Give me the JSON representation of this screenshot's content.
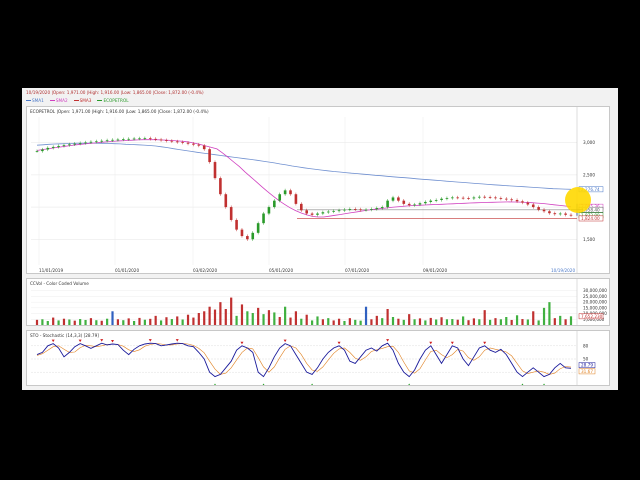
{
  "header": {
    "info": "10/19/2020 |Open: 1,971.00 |High: 1,916.00 |Low: 1,865.00 |Close: 1,872.00 (-0.4%)"
  },
  "legend": [
    {
      "name": "SMA1",
      "color": "#4a78c8"
    },
    {
      "name": "SMA2",
      "color": "#d040c0"
    },
    {
      "name": "SMA3",
      "color": "#c03030"
    },
    {
      "name": "ECOPETROL",
      "color": "#2a9a2a"
    }
  ],
  "panels": {
    "price_title": "ECOPETROL |Open: 1,971.00 |High: 1,916.00 |Low: 1,865.00 |Close: 1,872.00 (-0.4%)",
    "volume_title": "CCVol - Color Coded Volume",
    "stoch_title": "STO - Stochastic (14,3,3) [28.79]"
  },
  "chart_data": [
    {
      "type": "candlestick",
      "name": "ECOPETROL",
      "x_ticks": [
        "11/01/2019",
        "01/01/2020",
        "03/02/2020",
        "05/01/2020",
        "07/01/2020",
        "09/01/2020"
      ],
      "y_ticks": [
        "1,500",
        "2,000",
        "2,500",
        "3,000"
      ],
      "ylim": [
        1100,
        3400
      ],
      "last_date_label": "10/19/2020",
      "price_labels": [
        {
          "text": "2,276.74",
          "value": 2276.74,
          "color": "#4a78c8"
        },
        {
          "text": "2,005.36",
          "value": 2005.36,
          "color": "#d040c0"
        },
        {
          "text": "1,958.40",
          "value": 1958.4,
          "color": "#555555"
        },
        {
          "text": "1,872.00",
          "value": 1872.0,
          "color": "#2a9a2a"
        },
        {
          "text": "1,824.00",
          "value": 1824.0,
          "color": "#c03030"
        }
      ],
      "close": [
        2870,
        2895,
        2920,
        2935,
        2950,
        2962,
        2975,
        2985,
        2995,
        3005,
        3015,
        3022,
        3030,
        3038,
        3045,
        3050,
        3055,
        3060,
        3065,
        3068,
        3070,
        3060,
        3050,
        3040,
        3030,
        3020,
        3010,
        3000,
        2985,
        2970,
        2955,
        2900,
        2700,
        2450,
        2200,
        2000,
        1800,
        1650,
        1550,
        1500,
        1600,
        1750,
        1900,
        2000,
        2100,
        2200,
        2260,
        2200,
        2050,
        1950,
        1900,
        1880,
        1900,
        1920,
        1930,
        1940,
        1950,
        1960,
        1970,
        1965,
        1955,
        1960,
        1970,
        1985,
        2000,
        2100,
        2150,
        2100,
        2050,
        2030,
        2040,
        2060,
        2080,
        2100,
        2110,
        2130,
        2140,
        2150,
        2145,
        2140,
        2135,
        2150,
        2160,
        2155,
        2150,
        2140,
        2130,
        2120,
        2110,
        2090,
        2070,
        2040,
        2000,
        1960,
        1935,
        1905,
        1890,
        1900,
        1880,
        1872
      ],
      "sma_long": [
        2962,
        2968,
        2976,
        2980,
        2984,
        2987,
        2990,
        2993,
        2994,
        2994,
        2993,
        2991,
        2989,
        2985,
        2982,
        2976,
        2972,
        2968,
        2963,
        2957,
        2950,
        2937,
        2924,
        2908,
        2894,
        2879,
        2866,
        2852,
        2839,
        2826,
        2814,
        2801,
        2790,
        2777,
        2765,
        2752,
        2741,
        2728,
        2715,
        2700,
        2686,
        2670,
        2655,
        2639,
        2624,
        2610,
        2598,
        2585,
        2575,
        2564,
        2553,
        2545,
        2536,
        2527,
        2520,
        2511,
        2503,
        2494,
        2487,
        2478,
        2471,
        2463,
        2457,
        2449,
        2440,
        2432,
        2426,
        2418,
        2411,
        2403,
        2396,
        2389,
        2382,
        2375,
        2367,
        2360,
        2353,
        2346,
        2340,
        2334,
        2327,
        2322,
        2317,
        2310,
        2304,
        2298,
        2292,
        2286,
        2283,
        2280,
        2276
      ],
      "sma_mid": [
        2880,
        2895,
        2905,
        2920,
        2932,
        2945,
        2957,
        2968,
        2978,
        2987,
        2995,
        3003,
        3011,
        3018,
        3025,
        3030,
        3035,
        3040,
        3044,
        3047,
        3049,
        3048,
        3044,
        3040,
        3035,
        3029,
        3022,
        3012,
        2995,
        2974,
        2951,
        2927,
        2904,
        2842,
        2773,
        2700,
        2629,
        2547,
        2470,
        2395,
        2317,
        2240,
        2170,
        2104,
        2045,
        1990,
        1945,
        1908,
        1878,
        1856,
        1846,
        1846,
        1858,
        1872,
        1885,
        1900,
        1914,
        1927,
        1941,
        1954,
        1966,
        1976,
        1985,
        1995,
        2003,
        2011,
        2018,
        2024,
        2028,
        2033,
        2037,
        2040,
        2044,
        2048,
        2051,
        2055,
        2059,
        2063,
        2067,
        2070,
        2073,
        2075,
        2078,
        2079,
        2080,
        2079,
        2077,
        2073,
        2068,
        2062,
        2055,
        2046,
        2036,
        2026,
        2017,
        2005
      ],
      "horizontal_lines": [
        1958.4,
        1824.0
      ],
      "crosshair_value": 1958.4
    },
    {
      "type": "bar",
      "name": "CCVol - Color Coded Volume",
      "y_ticks": [
        "30,000,000",
        "25,000,000",
        "20,000,000",
        "15,000,000",
        "10,000,000",
        "5,000,000"
      ],
      "ylim": [
        0,
        35000000
      ],
      "last_value_label": "7,652,230",
      "values": [
        4.5,
        5.0,
        3.5,
        6.5,
        4.0,
        5.5,
        4.8,
        3.8,
        5.2,
        4.4,
        6.0,
        4.2,
        3.7,
        5.5,
        12.0,
        5.0,
        4.2,
        5.8,
        3.5,
        6.2,
        4.6,
        5.4,
        8.0,
        4.0,
        6.8,
        5.2,
        7.5,
        4.8,
        9.0,
        6.5,
        10.5,
        12.0,
        16.0,
        13.5,
        20.0,
        14.0,
        24.0,
        8.0,
        18.0,
        12.0,
        10.5,
        15.0,
        9.5,
        13.0,
        11.0,
        7.0,
        16.0,
        6.5,
        12.0,
        5.5,
        9.0,
        4.0,
        7.5,
        5.0,
        6.0,
        4.0,
        5.5,
        3.5,
        6.0,
        4.5,
        3.8,
        16.0,
        5.0,
        8.0,
        6.0,
        14.0,
        7.0,
        5.5,
        4.5,
        9.5,
        5.0,
        5.8,
        4.0,
        6.2,
        4.8,
        6.8,
        5.0,
        5.2,
        4.6,
        7.5,
        4.2,
        5.8,
        5.0,
        13.0,
        4.5,
        6.0,
        5.0,
        7.0,
        4.4,
        8.5,
        5.2,
        4.8,
        12.0,
        4.0,
        15.0,
        20.0,
        6.0,
        8.0,
        5.0,
        7.6
      ],
      "colors": [
        "r",
        "g",
        "g",
        "r",
        "g",
        "r",
        "g",
        "r",
        "g",
        "g",
        "r",
        "g",
        "r",
        "g",
        "b",
        "r",
        "g",
        "r",
        "g",
        "r",
        "g",
        "r",
        "r",
        "g",
        "r",
        "g",
        "r",
        "g",
        "r",
        "r",
        "r",
        "r",
        "r",
        "r",
        "r",
        "r",
        "r",
        "g",
        "r",
        "g",
        "g",
        "r",
        "g",
        "r",
        "g",
        "r",
        "g",
        "r",
        "r",
        "g",
        "r",
        "g",
        "g",
        "r",
        "g",
        "r",
        "r",
        "g",
        "r",
        "g",
        "g",
        "b",
        "r",
        "r",
        "g",
        "r",
        "g",
        "r",
        "g",
        "r",
        "g",
        "r",
        "g",
        "r",
        "g",
        "r",
        "g",
        "g",
        "r",
        "g",
        "r",
        "r",
        "g",
        "r",
        "g",
        "r",
        "g",
        "g",
        "r",
        "g",
        "r",
        "g",
        "r",
        "g",
        "g",
        "g",
        "r",
        "g",
        "r",
        "g"
      ]
    },
    {
      "type": "line",
      "name": "STO - Stochastic (14,3,3) [28.79]",
      "y_ticks": [
        "80",
        "50",
        "20"
      ],
      "ylim": [
        0,
        100
      ],
      "last_values": [
        {
          "text": "28.79",
          "color": "#1a1a9a"
        },
        {
          "text": "31.67",
          "color": "#e08020"
        }
      ],
      "k": [
        60,
        65,
        80,
        85,
        75,
        55,
        65,
        78,
        85,
        80,
        74,
        80,
        86,
        82,
        84,
        83,
        70,
        60,
        72,
        80,
        84,
        86,
        85,
        80,
        82,
        84,
        86,
        85,
        80,
        78,
        65,
        50,
        20,
        10,
        15,
        30,
        45,
        70,
        80,
        75,
        65,
        20,
        10,
        30,
        55,
        75,
        85,
        80,
        60,
        40,
        20,
        15,
        30,
        50,
        65,
        75,
        80,
        70,
        45,
        40,
        55,
        70,
        75,
        68,
        80,
        86,
        70,
        40,
        20,
        10,
        25,
        50,
        70,
        80,
        60,
        40,
        60,
        80,
        75,
        50,
        35,
        55,
        75,
        80,
        70,
        65,
        72,
        60,
        40,
        20,
        10,
        20,
        30,
        20,
        10,
        15,
        30,
        40,
        30,
        28.79
      ],
      "d": [
        58,
        62,
        70,
        78,
        80,
        72,
        65,
        66,
        76,
        81,
        80,
        78,
        80,
        83,
        84,
        83,
        79,
        71,
        67,
        71,
        79,
        83,
        85,
        84,
        82,
        82,
        84,
        85,
        84,
        81,
        74,
        64,
        45,
        27,
        15,
        18,
        30,
        48,
        65,
        75,
        73,
        53,
        32,
        20,
        32,
        53,
        72,
        80,
        75,
        60,
        40,
        25,
        22,
        32,
        48,
        63,
        73,
        75,
        65,
        52,
        47,
        55,
        67,
        71,
        74,
        78,
        79,
        65,
        43,
        23,
        18,
        28,
        48,
        67,
        70,
        60,
        53,
        60,
        72,
        68,
        53,
        47,
        55,
        70,
        75,
        72,
        69,
        66,
        57,
        40,
        23,
        17,
        20,
        23,
        20,
        15,
        18,
        28,
        33,
        31.67
      ]
    }
  ]
}
